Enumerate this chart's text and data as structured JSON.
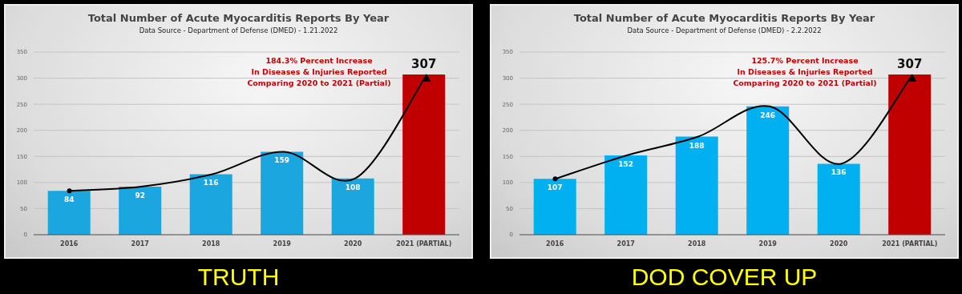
{
  "chart_data": [
    {
      "type": "bar",
      "title": "Total Number of Acute Myocarditis Reports By Year",
      "subtitle": "Data Source - Department of Defense (DMED) - 1.21.2022",
      "categories": [
        "2016",
        "2017",
        "2018",
        "2019",
        "2020",
        "2021 (PARTIAL)"
      ],
      "values": [
        84,
        92,
        116,
        159,
        108,
        307
      ],
      "colors": [
        "#1ba6e0",
        "#1ba6e0",
        "#1ba6e0",
        "#1ba6e0",
        "#1ba6e0",
        "#c00000"
      ],
      "ylim": [
        0,
        350
      ],
      "yticks": [
        0,
        50,
        100,
        150,
        200,
        250,
        300,
        350
      ],
      "grid": "y",
      "data_labels": true,
      "annotations": [
        "184.3% Percent Increase\nIn Diseases & Injuries Reported\nComparing 2020 to 2021 (Partial)",
        "TRUTH"
      ]
    },
    {
      "type": "bar",
      "title": "Total Number of Acute Myocarditis Reports By Year",
      "subtitle": "Data Source - Department of Defense (DMED) - 2.2.2022",
      "categories": [
        "2016",
        "2017",
        "2018",
        "2019",
        "2020",
        "2021 (PARTIAL)"
      ],
      "values": [
        107,
        152,
        188,
        246,
        136,
        307
      ],
      "colors": [
        "#00b0f0",
        "#00b0f0",
        "#00b0f0",
        "#00b0f0",
        "#00b0f0",
        "#c00000"
      ],
      "ylim": [
        0,
        350
      ],
      "yticks": [
        0,
        50,
        100,
        150,
        200,
        250,
        300,
        350
      ],
      "grid": "y",
      "data_labels": true,
      "annotations": [
        "125.7% Percent Increase\nIn Diseases & Injuries Reported\nComparing 2020 to 2021 (Partial)",
        "DOD COVER UP"
      ]
    }
  ]
}
